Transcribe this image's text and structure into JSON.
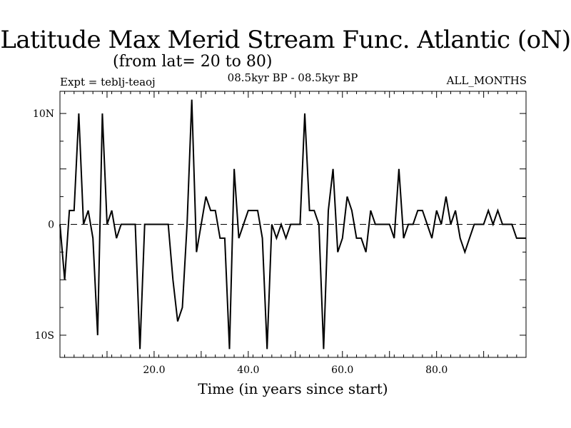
{
  "header": {
    "title": "Latitude Max Merid Stream Func. Atlantic (oN)",
    "subtitle": "(from lat= 20 to 80)",
    "experiment": "Expt = teblj-teaoj",
    "period": "08.5kyr BP - 08.5kyr BP",
    "months": "ALL_MONTHS"
  },
  "chart_data": {
    "type": "line",
    "title": "Latitude Max Merid Stream Func. Atlantic (oN)",
    "subtitle": "(from lat= 20 to 80)",
    "xlabel": "Time (in years since start)",
    "ylabel": "",
    "xlim": [
      0,
      99
    ],
    "ylim": [
      -12,
      12
    ],
    "x_ticks": [
      {
        "value": 20,
        "label": "20.0"
      },
      {
        "value": 40,
        "label": "40.0"
      },
      {
        "value": 60,
        "label": "60.0"
      },
      {
        "value": 80,
        "label": "80.0"
      }
    ],
    "y_ticks": [
      {
        "value": 10,
        "label": "10N"
      },
      {
        "value": 0,
        "label": "0"
      },
      {
        "value": -10,
        "label": "10S"
      }
    ],
    "zero_line": true,
    "series": [
      {
        "name": "Latitude Max",
        "x": [
          0,
          1,
          2,
          3,
          4,
          5,
          6,
          7,
          8,
          9,
          10,
          11,
          12,
          13,
          14,
          15,
          16,
          17,
          18,
          19,
          20,
          21,
          22,
          23,
          24,
          25,
          26,
          27,
          28,
          29,
          30,
          31,
          32,
          33,
          34,
          35,
          36,
          37,
          38,
          39,
          40,
          41,
          42,
          43,
          44,
          45,
          46,
          47,
          48,
          49,
          50,
          51,
          52,
          53,
          54,
          55,
          56,
          57,
          58,
          59,
          60,
          61,
          62,
          63,
          64,
          65,
          66,
          67,
          68,
          69,
          70,
          71,
          72,
          73,
          74,
          75,
          76,
          77,
          78,
          79,
          80,
          81,
          82,
          83,
          84,
          85,
          86,
          87,
          88,
          89,
          90,
          91,
          92,
          93,
          94,
          95,
          96,
          97,
          98,
          99
        ],
        "values": [
          0,
          -5,
          1.25,
          1.25,
          10,
          0,
          1.25,
          -1.25,
          -10,
          10,
          0,
          1.25,
          -1.25,
          0,
          0,
          0,
          0,
          -11.25,
          0,
          0,
          0,
          0,
          0,
          0,
          -5,
          -8.75,
          -7.5,
          0,
          11.25,
          -2.5,
          0,
          2.5,
          1.25,
          1.25,
          -1.25,
          -1.25,
          -11.25,
          5,
          -1.25,
          0,
          1.25,
          1.25,
          1.25,
          -1.25,
          -11.25,
          0,
          -1.25,
          0,
          -1.25,
          0,
          0,
          0,
          10,
          1.25,
          1.25,
          0,
          -11.25,
          1.25,
          5,
          -2.5,
          -1.25,
          2.5,
          1.25,
          -1.25,
          -1.25,
          -2.5,
          1.25,
          0,
          0,
          0,
          0,
          -1.25,
          5,
          -1.25,
          0,
          0,
          1.25,
          1.25,
          0,
          -1.25,
          1.25,
          0,
          2.5,
          0,
          1.25,
          -1.25,
          -2.5,
          -1.25,
          0,
          0,
          0,
          1.25,
          0,
          1.25,
          0,
          0,
          0,
          -1.25,
          -1.25,
          -1.25
        ]
      }
    ]
  }
}
